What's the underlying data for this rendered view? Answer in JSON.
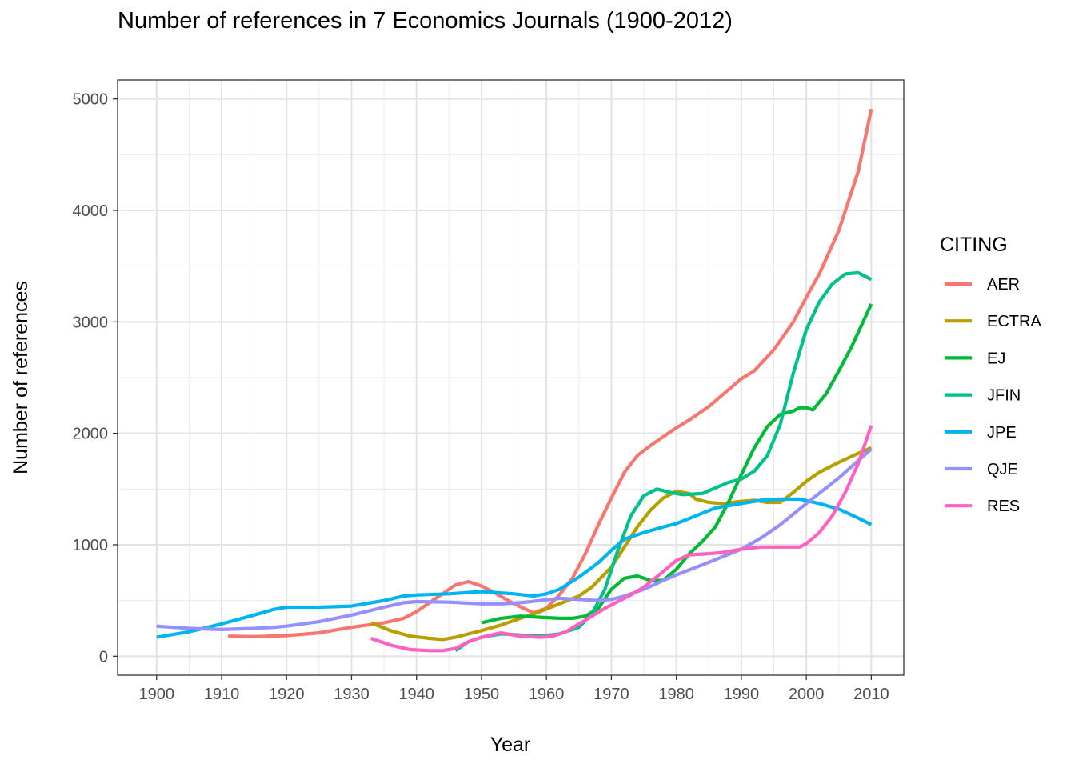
{
  "chart_data": {
    "type": "line",
    "title": "Number of references in 7 Economics Journals (1900-2012)",
    "xlabel": "Year",
    "ylabel": "Number of references",
    "xlim": [
      1894,
      2015
    ],
    "ylim": [
      -170,
      5170
    ],
    "x_ticks": [
      1900,
      1910,
      1920,
      1930,
      1940,
      1950,
      1960,
      1970,
      1980,
      1990,
      2000,
      2010
    ],
    "y_ticks": [
      0,
      1000,
      2000,
      3000,
      4000,
      5000
    ],
    "grid": true,
    "legend": {
      "title": "CITING",
      "position": "right"
    },
    "series": [
      {
        "name": "AER",
        "color": "#F8766D",
        "x": [
          1911,
          1915,
          1920,
          1925,
          1930,
          1935,
          1938,
          1940,
          1942,
          1944,
          1946,
          1948,
          1950,
          1952,
          1955,
          1958,
          1960,
          1962,
          1964,
          1966,
          1968,
          1970,
          1972,
          1974,
          1976,
          1978,
          1980,
          1982,
          1985,
          1988,
          1990,
          1992,
          1995,
          1998,
          2000,
          2002,
          2005,
          2008,
          2010
        ],
        "y": [
          180,
          175,
          185,
          210,
          260,
          300,
          340,
          400,
          480,
          560,
          640,
          670,
          630,
          570,
          470,
          390,
          430,
          550,
          700,
          920,
          1180,
          1420,
          1650,
          1800,
          1890,
          1970,
          2050,
          2120,
          2240,
          2390,
          2490,
          2560,
          2750,
          3000,
          3220,
          3430,
          3820,
          4350,
          4910
        ]
      },
      {
        "name": "ECTRA",
        "color": "#B79F00",
        "x": [
          1933,
          1936,
          1939,
          1942,
          1944,
          1946,
          1948,
          1950,
          1953,
          1956,
          1959,
          1962,
          1965,
          1967,
          1970,
          1972,
          1974,
          1976,
          1978,
          1980,
          1982,
          1983,
          1985,
          1987,
          1990,
          1992,
          1994,
          1996,
          1998,
          2000,
          2002,
          2005,
          2008,
          2010
        ],
        "y": [
          300,
          230,
          180,
          160,
          150,
          170,
          200,
          230,
          280,
          340,
          400,
          470,
          540,
          620,
          800,
          980,
          1160,
          1310,
          1420,
          1480,
          1460,
          1410,
          1380,
          1370,
          1390,
          1400,
          1380,
          1380,
          1470,
          1570,
          1650,
          1740,
          1820,
          1870
        ]
      },
      {
        "name": "EJ",
        "color": "#00BA38",
        "x": [
          1950,
          1953,
          1956,
          1959,
          1962,
          1964,
          1966,
          1968,
          1970,
          1972,
          1974,
          1976,
          1978,
          1980,
          1982,
          1984,
          1986,
          1988,
          1990,
          1992,
          1994,
          1996,
          1998,
          1999,
          2000,
          2001,
          2003,
          2005,
          2007,
          2010
        ],
        "y": [
          300,
          340,
          360,
          350,
          340,
          340,
          360,
          430,
          600,
          700,
          720,
          680,
          680,
          780,
          920,
          1030,
          1160,
          1380,
          1630,
          1870,
          2060,
          2170,
          2200,
          2230,
          2230,
          2210,
          2350,
          2560,
          2780,
          3160
        ]
      },
      {
        "name": "JFIN",
        "color": "#00C08B",
        "x": [
          1946,
          1948,
          1950,
          1953,
          1956,
          1959,
          1962,
          1965,
          1967,
          1969,
          1971,
          1973,
          1975,
          1977,
          1979,
          1981,
          1984,
          1986,
          1988,
          1990,
          1992,
          1994,
          1996,
          1998,
          2000,
          2002,
          2004,
          2006,
          2008,
          2010
        ],
        "y": [
          50,
          130,
          170,
          200,
          190,
          180,
          200,
          260,
          380,
          600,
          950,
          1260,
          1440,
          1500,
          1470,
          1450,
          1460,
          1510,
          1560,
          1590,
          1660,
          1800,
          2080,
          2540,
          2930,
          3180,
          3340,
          3430,
          3440,
          3380
        ]
      },
      {
        "name": "JPE",
        "color": "#00B4EF",
        "x": [
          1900,
          1905,
          1910,
          1915,
          1918,
          1920,
          1925,
          1930,
          1935,
          1938,
          1940,
          1945,
          1950,
          1955,
          1958,
          1960,
          1962,
          1965,
          1968,
          1970,
          1972,
          1975,
          1978,
          1980,
          1983,
          1986,
          1990,
          1993,
          1996,
          1999,
          2002,
          2005,
          2008,
          2010
        ],
        "y": [
          170,
          220,
          290,
          370,
          420,
          440,
          440,
          450,
          500,
          540,
          550,
          560,
          580,
          560,
          540,
          560,
          600,
          710,
          840,
          950,
          1050,
          1110,
          1160,
          1190,
          1260,
          1330,
          1370,
          1400,
          1410,
          1410,
          1370,
          1320,
          1240,
          1180
        ]
      },
      {
        "name": "QJE",
        "color": "#9590FF",
        "x": [
          1900,
          1905,
          1910,
          1915,
          1918,
          1920,
          1925,
          1930,
          1935,
          1938,
          1940,
          1945,
          1950,
          1953,
          1956,
          1959,
          1962,
          1965,
          1968,
          1970,
          1972,
          1975,
          1978,
          1980,
          1984,
          1987,
          1990,
          1993,
          1996,
          2000,
          2005,
          2010
        ],
        "y": [
          270,
          250,
          240,
          250,
          260,
          270,
          310,
          370,
          440,
          480,
          490,
          485,
          470,
          470,
          480,
          500,
          520,
          510,
          500,
          510,
          540,
          600,
          680,
          730,
          820,
          890,
          960,
          1060,
          1180,
          1370,
          1600,
          1860
        ]
      },
      {
        "name": "RES",
        "color": "#FF61C3",
        "x": [
          1933,
          1936,
          1939,
          1942,
          1944,
          1946,
          1948,
          1950,
          1953,
          1956,
          1959,
          1961,
          1963,
          1965,
          1967,
          1969,
          1971,
          1973,
          1975,
          1978,
          1980,
          1982,
          1985,
          1987,
          1990,
          1993,
          1996,
          1999,
          2000,
          2002,
          2004,
          2006,
          2008,
          2010
        ],
        "y": [
          160,
          100,
          60,
          50,
          50,
          70,
          130,
          170,
          210,
          180,
          170,
          180,
          220,
          290,
          360,
          430,
          490,
          550,
          620,
          760,
          860,
          910,
          920,
          930,
          960,
          980,
          980,
          980,
          1010,
          1110,
          1260,
          1470,
          1730,
          2070
        ]
      }
    ]
  }
}
